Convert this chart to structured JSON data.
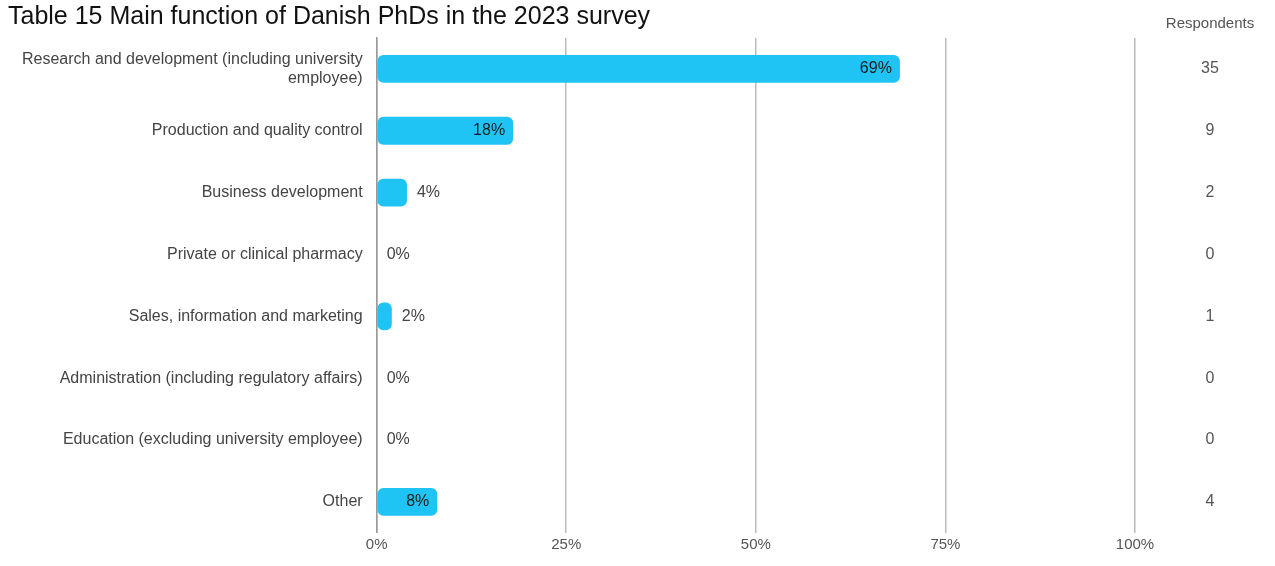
{
  "chart_data": {
    "type": "bar",
    "orientation": "horizontal",
    "title": "Table 15 Main function of Danish PhDs in the 2023 survey",
    "categories": [
      "Research and development (including university employee)",
      "Production and quality control",
      "Business development",
      "Private or clinical pharmacy",
      "Sales, information and marketing",
      "Administration (including regulatory affairs)",
      "Education (excluding university employee)",
      "Other"
    ],
    "values": [
      69,
      18,
      4,
      0,
      2,
      0,
      0,
      8
    ],
    "value_labels": [
      "69%",
      "18%",
      "4%",
      "0%",
      "2%",
      "0%",
      "0%",
      "8%"
    ],
    "color": "#20c4f4",
    "xlim": [
      0,
      100
    ],
    "xticks": [
      {
        "value": 0,
        "label": "0%"
      },
      {
        "value": 25,
        "label": "25%"
      },
      {
        "value": 50,
        "label": "50%"
      },
      {
        "value": 75,
        "label": "75%"
      },
      {
        "value": 100,
        "label": "100%"
      }
    ],
    "grid": "x",
    "legend": false,
    "annotations": [
      "Respondents",
      "35",
      "9",
      "2",
      "0",
      "1",
      "0",
      "0",
      "4"
    ]
  }
}
